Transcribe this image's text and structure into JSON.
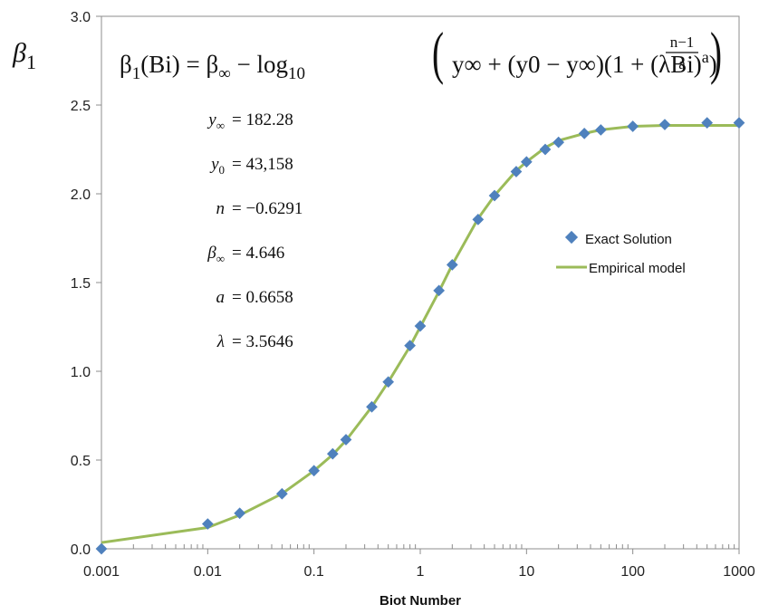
{
  "chart_data": {
    "type": "scatter",
    "xscale": "log",
    "xlim": [
      0.001,
      1000
    ],
    "ylim": [
      0.0,
      3.0
    ],
    "xlabel": "Biot Number",
    "ylabel": "β1",
    "xtick_labels": [
      "0.001",
      "0.01",
      "0.1",
      "1",
      "10",
      "100",
      "1000"
    ],
    "xtick_values": [
      0.001,
      0.01,
      0.1,
      1,
      10,
      100,
      1000
    ],
    "ytick_labels": [
      "0.0",
      "0.5",
      "1.0",
      "1.5",
      "2.0",
      "2.5",
      "3.0"
    ],
    "ytick_values": [
      0.0,
      0.5,
      1.0,
      1.5,
      2.0,
      2.5,
      3.0
    ],
    "grid": false,
    "legend_position": "right",
    "series": [
      {
        "name": "Exact Solution",
        "marker": "diamond",
        "color": "#4f81bd",
        "x": [
          0.001,
          0.01,
          0.02,
          0.05,
          0.1,
          0.15,
          0.2,
          0.35,
          0.5,
          0.8,
          1.0,
          1.5,
          2.0,
          3.5,
          5.0,
          8.0,
          10,
          15,
          20,
          35,
          50,
          100,
          200,
          500,
          1000
        ],
        "y": [
          0.0,
          0.14,
          0.2,
          0.31,
          0.44,
          0.535,
          0.615,
          0.8,
          0.94,
          1.145,
          1.255,
          1.455,
          1.6,
          1.855,
          1.99,
          2.125,
          2.18,
          2.25,
          2.29,
          2.34,
          2.36,
          2.38,
          2.39,
          2.4,
          2.4
        ]
      },
      {
        "name": "Empirical model",
        "line": true,
        "color": "#9bbb59",
        "x": [
          0.001,
          0.01,
          0.02,
          0.05,
          0.1,
          0.15,
          0.2,
          0.35,
          0.5,
          0.8,
          1.0,
          1.5,
          2.0,
          3.5,
          5.0,
          8.0,
          10,
          15,
          20,
          35,
          50,
          100,
          200,
          500,
          1000
        ],
        "y": [
          0.035,
          0.12,
          0.19,
          0.31,
          0.44,
          0.53,
          0.61,
          0.8,
          0.94,
          1.14,
          1.25,
          1.45,
          1.6,
          1.86,
          1.99,
          2.13,
          2.18,
          2.26,
          2.3,
          2.34,
          2.36,
          2.38,
          2.385,
          2.385,
          2.385
        ]
      }
    ],
    "equation": {
      "lhs": "β",
      "lhs_sub": "1",
      "lhs_arg": "(Bi) = β",
      "inf": "∞",
      "minus_log": " − log",
      "log_sub": "10",
      "body": "y∞ + (y0 − y∞)(1 + (λBi)",
      "exp_a": "a",
      "close": ")",
      "frac_num": "n−1",
      "frac_den": "a"
    },
    "params": [
      {
        "sym": "y",
        "sub": "∞",
        "value": "= 182.28"
      },
      {
        "sym": "y",
        "sub": "0",
        "value": "= 43,158"
      },
      {
        "sym": "n",
        "sub": "",
        "value": "= −0.6291"
      },
      {
        "sym": "β",
        "sub": "∞",
        "value": "= 4.646"
      },
      {
        "sym": "a",
        "sub": "",
        "value": "= 0.6658"
      },
      {
        "sym": "λ",
        "sub": "",
        "value": "= 3.5646"
      }
    ]
  }
}
